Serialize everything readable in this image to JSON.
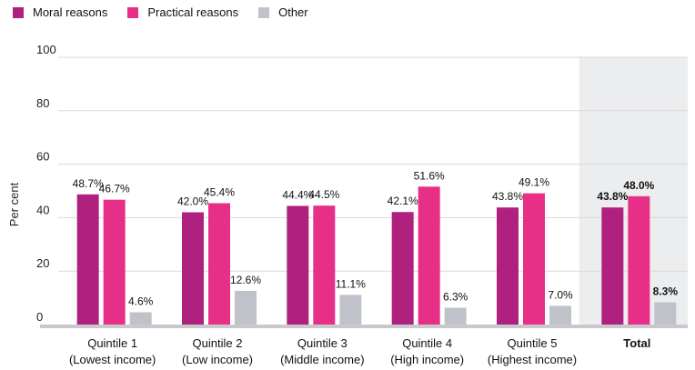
{
  "chart_data": {
    "type": "bar",
    "ylabel": "Per cent",
    "ylim": [
      0,
      100
    ],
    "yticks": [
      0,
      20,
      40,
      60,
      80,
      100
    ],
    "grid": true,
    "legend_position": "top-left",
    "categories": [
      [
        "Quintile 1",
        "(Lowest income)"
      ],
      [
        "Quintile 2",
        "(Low income)"
      ],
      [
        "Quintile 3",
        "(Middle income)"
      ],
      [
        "Quintile 4",
        "(High income)"
      ],
      [
        "Quintile 5",
        "(Highest income)"
      ],
      [
        "Total"
      ]
    ],
    "series": [
      {
        "name": "Moral reasons",
        "color": "#b0207f",
        "values": [
          48.7,
          42.0,
          44.4,
          42.1,
          43.8,
          43.8
        ],
        "labels": [
          "48.7%",
          "42.0%",
          "44.4%",
          "42.1%",
          "43.8%",
          "43.8%"
        ]
      },
      {
        "name": "Practical reasons",
        "color": "#e72f88",
        "values": [
          46.7,
          45.4,
          44.5,
          51.6,
          49.1,
          48.0
        ],
        "labels": [
          "46.7%",
          "45.4%",
          "44.5%",
          "51.6%",
          "49.1%",
          "48.0%"
        ]
      },
      {
        "name": "Other",
        "color": "#bfc3c9",
        "values": [
          4.6,
          12.6,
          11.1,
          6.3,
          7.0,
          8.3
        ],
        "labels": [
          "4.6%",
          "12.6%",
          "11.1%",
          "6.3%",
          "7.0%",
          "8.3%"
        ]
      }
    ],
    "highlight_category": "Total",
    "highlight_color": "#ecedef"
  }
}
